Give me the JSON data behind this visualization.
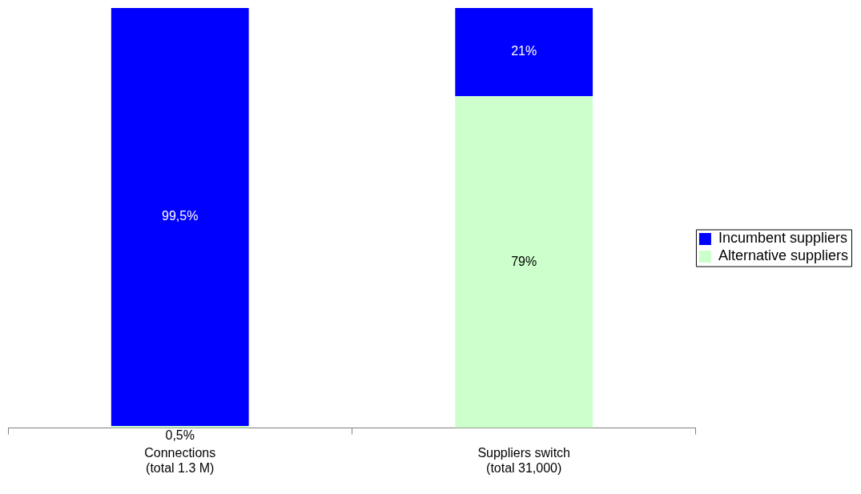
{
  "chart_data": {
    "type": "bar",
    "stacked": true,
    "categories": [
      "Connections\n(total 1.3 M)",
      "Suppliers switch\n(total 31,000)"
    ],
    "series": [
      {
        "name": "Alternative suppliers",
        "color": "#ccffcc",
        "values": [
          0.5,
          79
        ],
        "value_labels": [
          "0,5%",
          "79%"
        ]
      },
      {
        "name": "Incumbent suppliers",
        "color": "#0000ff",
        "values": [
          99.5,
          21
        ],
        "value_labels": [
          "99,5%",
          "21%"
        ]
      }
    ],
    "ylim": [
      0,
      100
    ],
    "tick_labels": "x",
    "legend": "right"
  }
}
